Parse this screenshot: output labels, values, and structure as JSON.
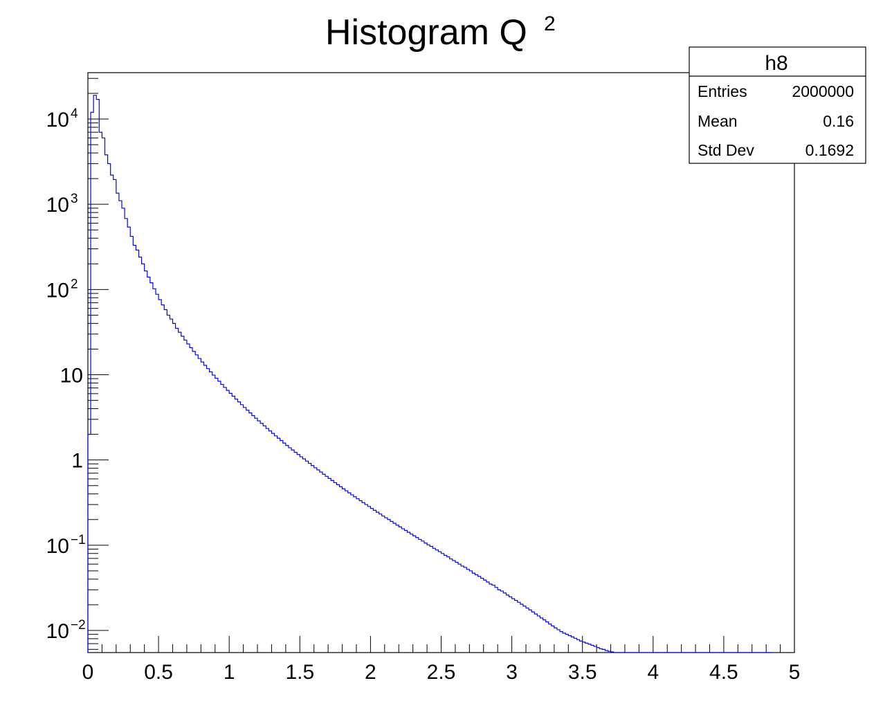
{
  "chart_data": {
    "type": "bar",
    "histogram_style": "step",
    "title": {
      "text": "Histogram Q",
      "superscript": "2"
    },
    "xlabel": "",
    "ylabel": "",
    "x_range": [
      0,
      5
    ],
    "y_range": [
      0.0055,
      35000
    ],
    "y_scale": "log",
    "grid": false,
    "line_color": "#0000ff",
    "x_ticks": [
      {
        "value": 0,
        "label": "0"
      },
      {
        "value": 0.5,
        "label": "0.5"
      },
      {
        "value": 1,
        "label": "1"
      },
      {
        "value": 1.5,
        "label": "1.5"
      },
      {
        "value": 2,
        "label": "2"
      },
      {
        "value": 2.5,
        "label": "2.5"
      },
      {
        "value": 3,
        "label": "3"
      },
      {
        "value": 3.5,
        "label": "3.5"
      },
      {
        "value": 4,
        "label": "4"
      },
      {
        "value": 4.5,
        "label": "4.5"
      },
      {
        "value": 5,
        "label": "5"
      }
    ],
    "y_ticks": [
      {
        "value": 0.01,
        "base": "10",
        "exp": "−2"
      },
      {
        "value": 0.1,
        "base": "10",
        "exp": "−1"
      },
      {
        "value": 1,
        "base": "1",
        "exp": ""
      },
      {
        "value": 10,
        "base": "10",
        "exp": ""
      },
      {
        "value": 100,
        "base": "10",
        "exp": "2"
      },
      {
        "value": 1000,
        "base": "10",
        "exp": "3"
      },
      {
        "value": 10000,
        "base": "10",
        "exp": "4"
      }
    ],
    "series": [
      {
        "bin_width": 0.02,
        "values": [
          2,
          12000,
          19000,
          17000,
          7000,
          6000,
          3800,
          3000,
          2200,
          1950,
          1350,
          1100,
          900,
          680,
          540,
          420,
          330,
          290,
          240,
          200,
          165,
          140,
          120,
          102,
          88,
          76,
          66,
          58,
          50,
          45,
          40,
          35,
          31.5,
          28.3,
          25.5,
          23,
          20.8,
          18.8,
          17.1,
          15.5,
          14.1,
          12.9,
          11.8,
          10.8,
          9.9,
          9.1,
          8.4,
          7.7,
          7.1,
          6.55,
          6.05,
          5.6,
          5.18,
          4.8,
          4.45,
          4.13,
          3.84,
          3.57,
          3.32,
          3.09,
          2.88,
          2.69,
          2.51,
          2.34,
          2.19,
          2.05,
          1.92,
          1.8,
          1.69,
          1.58,
          1.48,
          1.39,
          1.31,
          1.23,
          1.16,
          1.09,
          1.03,
          0.97,
          0.913,
          0.86,
          0.81,
          0.765,
          0.722,
          0.681,
          0.643,
          0.607,
          0.574,
          0.542,
          0.513,
          0.485,
          0.459,
          0.435,
          0.412,
          0.39,
          0.37,
          0.351,
          0.333,
          0.316,
          0.3,
          0.285,
          0.27,
          0.257,
          0.244,
          0.232,
          0.22,
          0.21,
          0.2,
          0.19,
          0.181,
          0.172,
          0.164,
          0.156,
          0.149,
          0.142,
          0.135,
          0.129,
          0.123,
          0.117,
          0.112,
          0.106,
          0.101,
          0.097,
          0.092,
          0.088,
          0.084,
          0.08,
          0.076,
          0.073,
          0.069,
          0.066,
          0.063,
          0.06,
          0.057,
          0.055,
          0.052,
          0.05,
          0.047,
          0.045,
          0.043,
          0.041,
          0.039,
          0.037,
          0.035,
          0.034,
          0.032,
          0.03,
          0.029,
          0.0275,
          0.026,
          0.0248,
          0.0236,
          0.0225,
          0.0214,
          0.0203,
          0.0193,
          0.0183,
          0.0174,
          0.0165,
          0.0156,
          0.0148,
          0.014,
          0.0133,
          0.0126,
          0.0119,
          0.0113,
          0.0107,
          0.0102,
          0.0097,
          0.0093,
          0.009,
          0.0087,
          0.0084,
          0.0081,
          0.0078,
          0.0075,
          0.0073,
          0.0071,
          0.0069,
          0.0067,
          0.0065,
          0.0063,
          0.0061,
          0.006,
          0.0058,
          0.0057,
          0.0056,
          0.0055,
          0.0054,
          0.0053,
          0.0052,
          0.0051,
          0.005,
          0.0049,
          0.0048,
          0.0047,
          0.0046,
          0.0045,
          0.0044,
          0.0043,
          0.0042,
          0.0041,
          0.004,
          0.0039,
          0.0038,
          0.0037,
          0.0036,
          0.0035,
          0.0034,
          0.0033,
          0.0032,
          0.0031,
          0.003,
          0.0029,
          0.0028,
          0.0027,
          0.0026,
          0.0025,
          0.0024,
          0.0023,
          0.0022,
          0.0021,
          0.002,
          0.0019,
          0.0018,
          0.0017,
          0.0016,
          0.0015,
          0.0014,
          0.0013,
          0.0012,
          0.0011,
          0.001,
          0.0009,
          0.0008,
          0.0007,
          0.0006,
          0.0005,
          0.0004,
          0.0003,
          0.0002,
          0.0001,
          0.0001
        ]
      }
    ]
  },
  "stats_box": {
    "name": "h8",
    "rows": [
      {
        "label": "Entries",
        "value": "2000000"
      },
      {
        "label": "Mean",
        "value": "0.16"
      },
      {
        "label": "Std Dev",
        "value": "0.1692"
      }
    ]
  }
}
